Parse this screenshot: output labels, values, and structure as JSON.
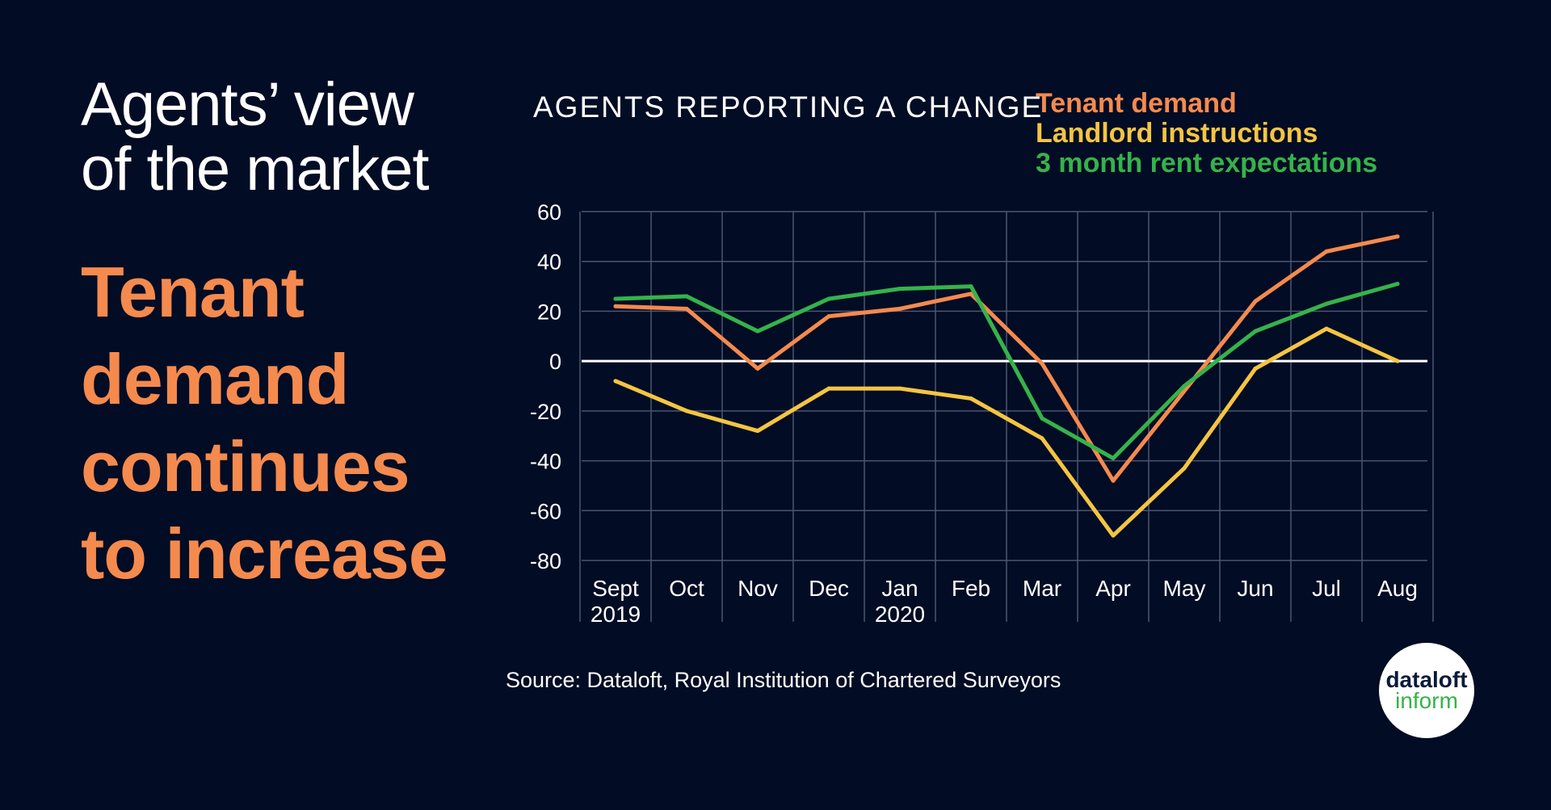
{
  "headline": {
    "line1": "Agents’ view",
    "line2": "of the market"
  },
  "subhead": {
    "lines": [
      "Tenant",
      "demand",
      "continues",
      "to increase"
    ]
  },
  "source": "Source:  Dataloft, Royal Institution of Chartered Surveyors",
  "logo": {
    "line1": "dataloft",
    "line2": "inform"
  },
  "colors": {
    "background": "#020c24",
    "tenant": "#f58a4e",
    "landlord": "#f5c542",
    "rent": "#35b34a",
    "grid": "#4a5672",
    "zero": "#ffffff"
  },
  "chart_data": {
    "type": "line",
    "title": "AGENTS REPORTING A CHANGE",
    "categories": [
      [
        "Sept",
        "2019"
      ],
      [
        "Oct"
      ],
      [
        "Nov"
      ],
      [
        "Dec"
      ],
      [
        "Jan",
        "2020"
      ],
      [
        "Feb"
      ],
      [
        "Mar"
      ],
      [
        "Apr"
      ],
      [
        "May"
      ],
      [
        "Jun"
      ],
      [
        "Jul"
      ],
      [
        "Aug"
      ]
    ],
    "series": [
      {
        "name": "Tenant demand",
        "color": "#f58a4e",
        "values": [
          22,
          21,
          -3,
          18,
          21,
          27,
          -1,
          -48,
          -12,
          24,
          44,
          50
        ]
      },
      {
        "name": "Landlord instructions",
        "color": "#f5c542",
        "values": [
          -8,
          -20,
          -28,
          -11,
          -11,
          -15,
          -31,
          -70,
          -43,
          -3,
          13,
          0
        ]
      },
      {
        "name": "3 month rent expectations",
        "color": "#35b34a",
        "values": [
          25,
          26,
          12,
          25,
          29,
          30,
          -23,
          -39,
          -10,
          12,
          23,
          31
        ]
      }
    ],
    "ylim": [
      -80,
      60
    ],
    "yticks": [
      60,
      40,
      20,
      0,
      -20,
      -40,
      -60,
      -80
    ],
    "grid": true,
    "legend": "top-right"
  }
}
